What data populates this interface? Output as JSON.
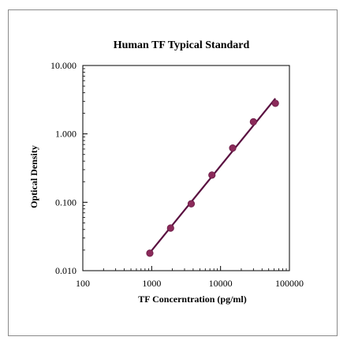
{
  "chart_data": {
    "type": "scatter",
    "title": "Human TF Typical Standard",
    "xlabel": "TF Concerntration (pg/ml)",
    "ylabel": "Optical Density",
    "x_scale": "log",
    "y_scale": "log",
    "xlim": [
      100,
      100000
    ],
    "ylim": [
      0.01,
      10
    ],
    "x_tick_labels": [
      "100",
      "1000",
      "10000",
      "100000"
    ],
    "y_tick_labels": [
      "0.010",
      "0.100",
      "1.000",
      "10.000"
    ],
    "grid": false,
    "legend": "none",
    "series": [
      {
        "x": [
          940,
          1880,
          3750,
          7500,
          15000,
          30000,
          62500
        ],
        "y": [
          0.018,
          0.042,
          0.095,
          0.25,
          0.62,
          1.5,
          2.8
        ],
        "color": "#8b2a5a",
        "show_trendline": true,
        "trendline_color": "#5a1040"
      }
    ]
  }
}
